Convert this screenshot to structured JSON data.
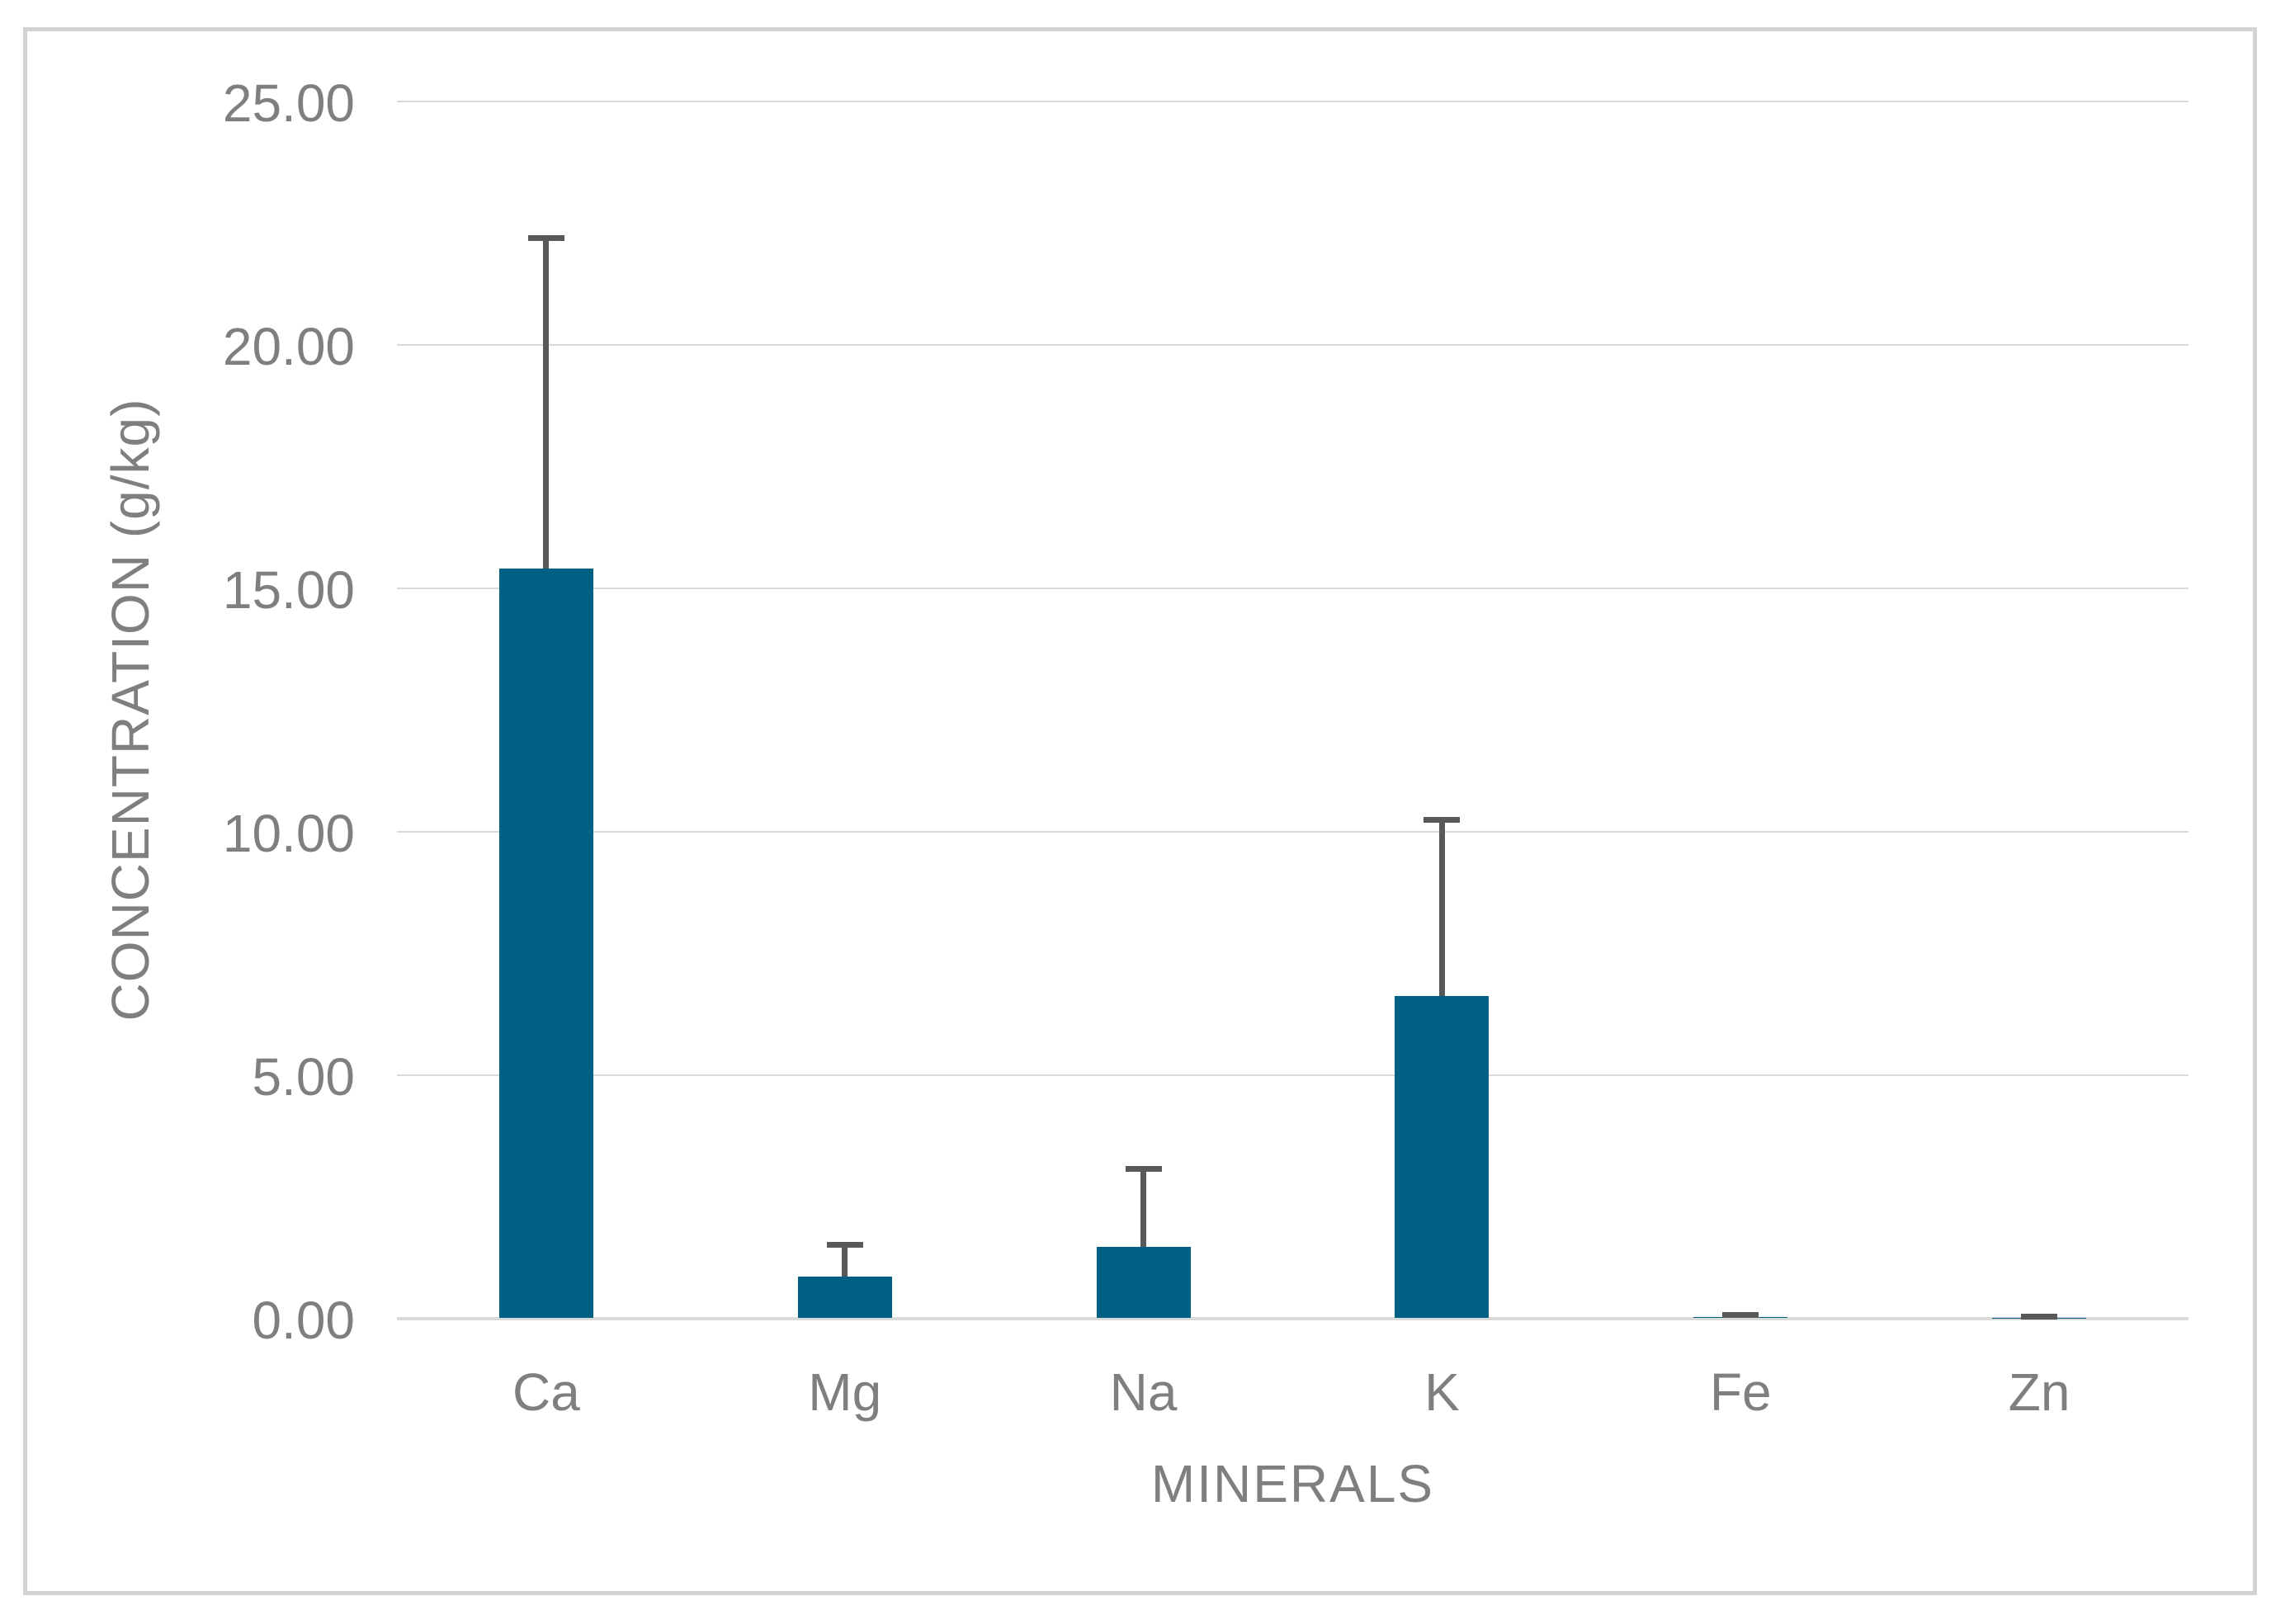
{
  "chart_data": {
    "type": "bar",
    "title": "",
    "categories": [
      "Ca",
      "Mg",
      "Na",
      "K",
      "Fe",
      "Zn"
    ],
    "values": [
      15.41,
      0.86,
      1.47,
      6.63,
      0.04,
      0.02
    ],
    "errors_plus": [
      6.78,
      0.65,
      1.6,
      3.61,
      0.03,
      0.03
    ],
    "error_whisker_tops": [
      22.19,
      1.51,
      3.07,
      10.24,
      0.07,
      0.05
    ],
    "xlabel": "MINERALS",
    "ylabel": "CONCENTRATION (g/kg)",
    "ylim": [
      0,
      25
    ],
    "ytick_step": 5,
    "ytick_labels": [
      "0.00",
      "5.00",
      "10.00",
      "15.00",
      "20.00",
      "25.00"
    ],
    "grid": true,
    "legend_position": "none",
    "colors": {
      "bar": "#016184",
      "error_bar": "#595959",
      "gridline": "#D9D9D9",
      "axis_line": "#D9D9D9",
      "text": "#7F7F7F",
      "border": "#D3D3D3",
      "background": "#FFFFFF"
    }
  }
}
